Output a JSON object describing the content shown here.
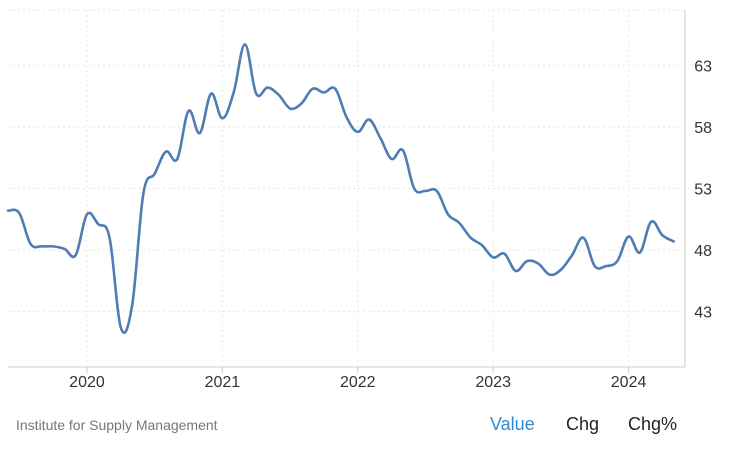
{
  "chart_data": {
    "type": "line",
    "title": "",
    "xlabel": "",
    "ylabel": "",
    "ylim": [
      38.5,
      67.5
    ],
    "xlim": [
      "2019-06-01",
      "2024-06-01"
    ],
    "yticks": [
      43,
      48,
      53,
      58,
      63
    ],
    "xticks": [
      {
        "label": "2020",
        "date": "2020-01-01"
      },
      {
        "label": "2021",
        "date": "2021-01-01"
      },
      {
        "label": "2022",
        "date": "2022-01-01"
      },
      {
        "label": "2023",
        "date": "2023-01-01"
      },
      {
        "label": "2024",
        "date": "2024-01-01"
      }
    ],
    "grid": true,
    "series": [
      {
        "color": "#4f7db3",
        "points": [
          [
            "2019-06",
            51.2
          ],
          [
            "2019-07",
            51.0
          ],
          [
            "2019-08",
            48.5
          ],
          [
            "2019-09",
            48.3
          ],
          [
            "2019-10",
            48.3
          ],
          [
            "2019-11",
            48.1
          ],
          [
            "2019-12",
            47.6
          ],
          [
            "2020-01",
            50.9
          ],
          [
            "2020-02",
            50.1
          ],
          [
            "2020-03",
            49.0
          ],
          [
            "2020-04",
            41.7
          ],
          [
            "2020-05",
            43.5
          ],
          [
            "2020-06",
            52.6
          ],
          [
            "2020-07",
            54.2
          ],
          [
            "2020-08",
            56.0
          ],
          [
            "2020-09",
            55.4
          ],
          [
            "2020-10",
            59.3
          ],
          [
            "2020-11",
            57.5
          ],
          [
            "2020-12",
            60.7
          ],
          [
            "2021-01",
            58.7
          ],
          [
            "2021-02",
            60.8
          ],
          [
            "2021-03",
            64.7
          ],
          [
            "2021-04",
            60.7
          ],
          [
            "2021-05",
            61.2
          ],
          [
            "2021-06",
            60.6
          ],
          [
            "2021-07",
            59.5
          ],
          [
            "2021-08",
            59.9
          ],
          [
            "2021-09",
            61.1
          ],
          [
            "2021-10",
            60.8
          ],
          [
            "2021-11",
            61.1
          ],
          [
            "2021-12",
            58.8
          ],
          [
            "2022-01",
            57.6
          ],
          [
            "2022-02",
            58.6
          ],
          [
            "2022-03",
            57.1
          ],
          [
            "2022-04",
            55.4
          ],
          [
            "2022-05",
            56.1
          ],
          [
            "2022-06",
            53.0
          ],
          [
            "2022-07",
            52.8
          ],
          [
            "2022-08",
            52.8
          ],
          [
            "2022-09",
            50.9
          ],
          [
            "2022-10",
            50.2
          ],
          [
            "2022-11",
            49.0
          ],
          [
            "2022-12",
            48.4
          ],
          [
            "2023-01",
            47.4
          ],
          [
            "2023-02",
            47.7
          ],
          [
            "2023-03",
            46.3
          ],
          [
            "2023-04",
            47.1
          ],
          [
            "2023-05",
            46.9
          ],
          [
            "2023-06",
            46.0
          ],
          [
            "2023-07",
            46.4
          ],
          [
            "2023-08",
            47.6
          ],
          [
            "2023-09",
            49.0
          ],
          [
            "2023-10",
            46.7
          ],
          [
            "2023-11",
            46.7
          ],
          [
            "2023-12",
            47.1
          ],
          [
            "2024-01",
            49.1
          ],
          [
            "2024-02",
            47.8
          ],
          [
            "2024-03",
            50.3
          ],
          [
            "2024-04",
            49.2
          ],
          [
            "2024-05",
            48.7
          ]
        ]
      }
    ]
  },
  "source": "Institute for Supply Management",
  "tabs": [
    {
      "label": "Value",
      "active": true
    },
    {
      "label": "Chg",
      "active": false
    },
    {
      "label": "Chg%",
      "active": false
    }
  ],
  "colors": {
    "line": "#4f7db3",
    "active_tab": "#2e8bd6",
    "grid": "#e6e6e6"
  }
}
